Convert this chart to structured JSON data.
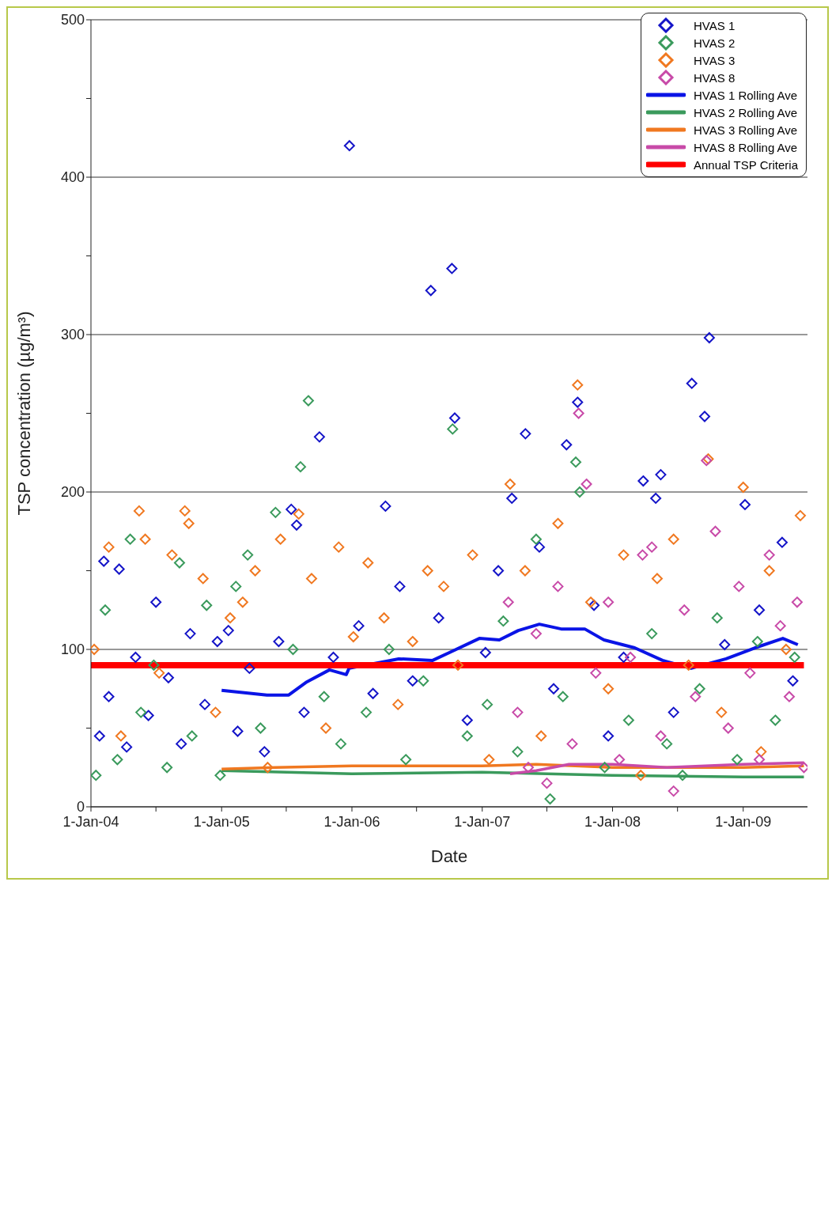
{
  "chart_data": {
    "type": "scatter",
    "xlabel": "Date",
    "ylabel": "TSP concentration (µg/m³)",
    "xlim": [
      "2004-01-01",
      "2009-06-30"
    ],
    "xticks": [
      {
        "value": "2004-01-01",
        "label": "1-Jan-04"
      },
      {
        "value": "2004-07-01",
        "label": null
      },
      {
        "value": "2005-01-01",
        "label": "1-Jan-05"
      },
      {
        "value": "2005-07-01",
        "label": null
      },
      {
        "value": "2006-01-01",
        "label": "1-Jan-06"
      },
      {
        "value": "2006-07-01",
        "label": null
      },
      {
        "value": "2007-01-01",
        "label": "1-Jan-07"
      },
      {
        "value": "2007-07-01",
        "label": null
      },
      {
        "value": "2008-01-01",
        "label": "1-Jan-08"
      },
      {
        "value": "2008-07-01",
        "label": null
      },
      {
        "value": "2009-01-01",
        "label": "1-Jan-09"
      }
    ],
    "ylim": [
      0,
      500
    ],
    "yticks": [
      0,
      {
        "value": 50,
        "label": null
      },
      100,
      {
        "value": 150,
        "label": null
      },
      200,
      {
        "value": 250,
        "label": null
      },
      300,
      {
        "value": 350,
        "label": null
      },
      400,
      {
        "value": 450,
        "label": null
      },
      500
    ],
    "grid": "y",
    "legend": "top right",
    "series": [
      {
        "name": "HVAS 1",
        "marker": "diamond",
        "color": "#1414c8",
        "x": [
          "2004-01-25",
          "2004-02-06",
          "2004-02-20",
          "2004-03-20",
          "2004-04-10",
          "2004-05-05",
          "2004-06-10",
          "2004-07-01",
          "2004-08-05",
          "2004-09-10",
          "2004-10-05",
          "2004-11-15",
          "2004-12-20",
          "2005-01-20",
          "2005-02-15",
          "2005-03-20",
          "2005-05-01",
          "2005-06-10",
          "2005-07-15",
          "2005-07-30",
          "2005-08-20",
          "2005-10-02",
          "2005-11-10",
          "2005-12-25",
          "2006-01-20",
          "2006-03-01",
          "2006-04-05",
          "2006-05-15",
          "2006-06-20",
          "2006-08-10",
          "2006-09-01",
          "2006-10-08",
          "2006-10-16",
          "2006-11-20",
          "2007-01-10",
          "2007-02-15",
          "2007-03-25",
          "2007-05-02",
          "2007-06-10",
          "2007-07-20",
          "2007-08-25",
          "2007-09-25",
          "2007-11-10",
          "2007-12-20",
          "2008-02-01",
          "2008-03-27",
          "2008-05-01",
          "2008-05-15",
          "2008-06-20",
          "2008-08-10",
          "2008-09-15",
          "2008-09-28",
          "2008-11-10",
          "2009-01-06",
          "2009-02-15",
          "2009-04-20",
          "2009-05-20"
        ],
        "values": [
          45,
          156,
          70,
          151,
          38,
          95,
          58,
          130,
          82,
          40,
          110,
          65,
          105,
          112,
          48,
          88,
          35,
          105,
          189,
          179,
          60,
          235,
          95,
          420,
          115,
          72,
          191,
          140,
          80,
          328,
          120,
          342,
          247,
          55,
          98,
          150,
          196,
          237,
          165,
          75,
          230,
          257,
          128,
          45,
          95,
          207,
          196,
          211,
          60,
          269,
          248,
          298,
          103,
          192,
          125,
          168,
          80
        ]
      },
      {
        "name": "HVAS 2",
        "marker": "diamond",
        "color": "#3a9a5c",
        "x": [
          "2004-01-15",
          "2004-02-10",
          "2004-03-15",
          "2004-04-20",
          "2004-05-20",
          "2004-06-25",
          "2004-08-01",
          "2004-09-05",
          "2004-10-10",
          "2004-11-20",
          "2004-12-28",
          "2005-02-10",
          "2005-03-15",
          "2005-04-20",
          "2005-06-01",
          "2005-07-20",
          "2005-08-10",
          "2005-09-01",
          "2005-10-15",
          "2005-12-01",
          "2006-02-10",
          "2006-04-15",
          "2006-06-01",
          "2006-07-20",
          "2006-10-10",
          "2006-11-20",
          "2007-01-15",
          "2007-03-01",
          "2007-04-10",
          "2007-06-01",
          "2007-07-10",
          "2007-08-15",
          "2007-09-20",
          "2007-10-01",
          "2007-12-10",
          "2008-02-15",
          "2008-04-20",
          "2008-06-01",
          "2008-07-15",
          "2008-09-01",
          "2008-10-20",
          "2008-12-15",
          "2009-02-10",
          "2009-04-01",
          "2009-05-25"
        ],
        "values": [
          20,
          125,
          30,
          170,
          60,
          90,
          25,
          155,
          45,
          128,
          20,
          140,
          160,
          50,
          187,
          100,
          216,
          258,
          70,
          40,
          60,
          100,
          30,
          80,
          240,
          45,
          65,
          118,
          35,
          170,
          5,
          70,
          219,
          200,
          25,
          55,
          110,
          40,
          20,
          75,
          120,
          30,
          105,
          55,
          95
        ]
      },
      {
        "name": "HVAS 3",
        "marker": "diamond",
        "color": "#f07820",
        "x": [
          "2004-01-10",
          "2004-02-20",
          "2004-03-25",
          "2004-05-15",
          "2004-06-01",
          "2004-07-10",
          "2004-08-15",
          "2004-09-20",
          "2004-10-01",
          "2004-11-10",
          "2004-12-15",
          "2005-01-25",
          "2005-03-01",
          "2005-04-05",
          "2005-05-10",
          "2005-06-15",
          "2005-08-05",
          "2005-09-10",
          "2005-10-20",
          "2005-11-25",
          "2006-01-05",
          "2006-02-15",
          "2006-04-01",
          "2006-05-10",
          "2006-06-20",
          "2006-08-01",
          "2006-09-15",
          "2006-10-25",
          "2006-12-05",
          "2007-01-20",
          "2007-03-20",
          "2007-05-01",
          "2007-06-15",
          "2007-08-01",
          "2007-09-25",
          "2007-11-01",
          "2007-12-20",
          "2008-02-01",
          "2008-03-20",
          "2008-05-05",
          "2008-06-20",
          "2008-08-01",
          "2008-09-25",
          "2008-11-01",
          "2009-01-01",
          "2009-02-20",
          "2009-03-15",
          "2009-05-01",
          "2009-06-10"
        ],
        "values": [
          100,
          165,
          45,
          188,
          170,
          85,
          160,
          188,
          180,
          145,
          60,
          120,
          130,
          150,
          25,
          170,
          186,
          145,
          50,
          165,
          108,
          155,
          120,
          65,
          105,
          150,
          140,
          90,
          160,
          30,
          205,
          150,
          45,
          180,
          268,
          130,
          75,
          160,
          20,
          145,
          170,
          90,
          221,
          60,
          203,
          35,
          150,
          100,
          185
        ]
      },
      {
        "name": "HVAS 8",
        "marker": "diamond",
        "color": "#c84aa8",
        "x": [
          "2007-03-15",
          "2007-04-10",
          "2007-05-10",
          "2007-06-01",
          "2007-07-01",
          "2007-08-01",
          "2007-09-10",
          "2007-09-28",
          "2007-10-20",
          "2007-11-15",
          "2007-12-20",
          "2008-01-20",
          "2008-02-20",
          "2008-03-25",
          "2008-04-20",
          "2008-05-15",
          "2008-06-20",
          "2008-07-20",
          "2008-08-20",
          "2008-09-20",
          "2008-10-15",
          "2008-11-20",
          "2008-12-20",
          "2009-01-20",
          "2009-02-15",
          "2009-03-15",
          "2009-04-15",
          "2009-05-10",
          "2009-06-01",
          "2009-06-20"
        ],
        "values": [
          130,
          60,
          25,
          110,
          15,
          140,
          40,
          250,
          205,
          85,
          130,
          30,
          95,
          160,
          165,
          45,
          10,
          125,
          70,
          220,
          175,
          50,
          140,
          85,
          30,
          160,
          115,
          70,
          130,
          25
        ]
      },
      {
        "name": "HVAS 1 Rolling Ave",
        "type": "line",
        "marker": "none",
        "color": "#0a14e6",
        "x": [
          "2005-01-01",
          "2005-05-08",
          "2005-07-08",
          "2005-08-25",
          "2005-10-30",
          "2005-12-16",
          "2005-12-24",
          "2006-05-12",
          "2006-08-15",
          "2006-10-01",
          "2006-12-24",
          "2007-02-18",
          "2007-04-12",
          "2007-06-10",
          "2007-08-10",
          "2007-10-15",
          "2007-12-08",
          "2008-03-03",
          "2008-05-20",
          "2008-08-08",
          "2008-11-14",
          "2009-02-03",
          "2009-04-22",
          "2009-06-03"
        ],
        "values": [
          74,
          71,
          71,
          79,
          87,
          84,
          88,
          94,
          93,
          98,
          107,
          106,
          112,
          116,
          113,
          113,
          106,
          101,
          93,
          88,
          94,
          101,
          107,
          103
        ]
      },
      {
        "name": "HVAS 2 Rolling Ave",
        "type": "line",
        "marker": "none",
        "color": "#3a9a5c",
        "x": [
          "2005-01-01",
          "2006-01-01",
          "2007-01-01",
          "2008-01-01",
          "2009-01-01",
          "2009-06-20"
        ],
        "values": [
          23,
          21,
          22,
          20,
          19,
          19
        ]
      },
      {
        "name": "HVAS 3 Rolling Ave",
        "type": "line",
        "marker": "none",
        "color": "#f07820",
        "x": [
          "2005-01-01",
          "2005-06-01",
          "2006-01-01",
          "2007-01-01",
          "2007-06-01",
          "2008-01-01",
          "2009-01-01",
          "2009-06-20"
        ],
        "values": [
          24,
          25,
          26,
          26,
          27,
          25,
          25,
          26
        ]
      },
      {
        "name": "HVAS 8 Rolling Ave",
        "type": "line",
        "marker": "none",
        "color": "#c84aa8",
        "x": [
          "2007-03-20",
          "2007-06-01",
          "2007-09-01",
          "2008-01-01",
          "2008-06-01",
          "2009-01-01",
          "2009-06-20"
        ],
        "values": [
          21,
          23,
          27,
          27,
          25,
          27,
          28
        ]
      },
      {
        "name": "Annual TSP Criteria",
        "type": "line",
        "marker": "none",
        "color": "#ff0000",
        "x": [
          "2004-01-01",
          "2009-06-20"
        ],
        "values": [
          90,
          90
        ]
      }
    ]
  }
}
